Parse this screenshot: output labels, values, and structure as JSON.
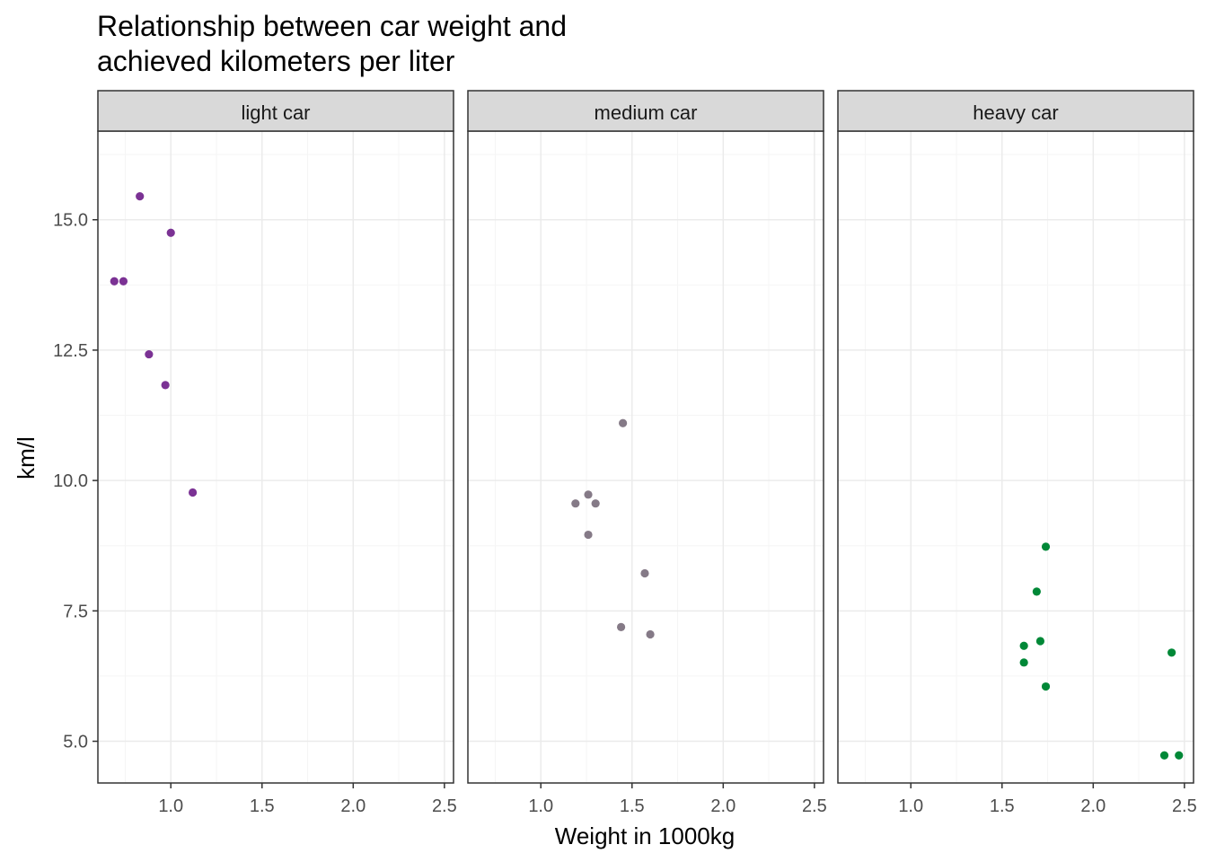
{
  "chart_data": {
    "type": "scatter",
    "title_lines": [
      "Relationship between car weight and",
      "achieved kilometers per liter"
    ],
    "xlabel": "Weight in 1000kg",
    "ylabel": "km/l",
    "xlim": [
      0.6,
      2.55
    ],
    "ylim": [
      4.2,
      16.7
    ],
    "x_ticks": [
      1.0,
      1.5,
      2.0,
      2.5
    ],
    "x_tick_labels": [
      "1.0",
      "1.5",
      "2.0",
      "2.5"
    ],
    "y_ticks": [
      5.0,
      7.5,
      10.0,
      12.5,
      15.0
    ],
    "y_tick_labels": [
      "5.0",
      "7.5",
      "10.0",
      "12.5",
      "15.0"
    ],
    "grid": true,
    "colors": {
      "light": "#7b3294",
      "medium": "#857a87",
      "heavy": "#008837",
      "strip_fill": "#d9d9d9",
      "grid_major": "#ebebeb",
      "grid_minor": "#f5f5f5"
    },
    "panels": [
      {
        "name": "light car",
        "color_key": "light",
        "points": [
          {
            "x": 0.83,
            "y": 15.45
          },
          {
            "x": 1.0,
            "y": 14.75
          },
          {
            "x": 0.69,
            "y": 13.82
          },
          {
            "x": 0.74,
            "y": 13.82
          },
          {
            "x": 0.88,
            "y": 12.42
          },
          {
            "x": 0.97,
            "y": 11.83
          },
          {
            "x": 1.12,
            "y": 9.77
          }
        ]
      },
      {
        "name": "medium car",
        "color_key": "medium",
        "points": [
          {
            "x": 1.45,
            "y": 11.1
          },
          {
            "x": 1.26,
            "y": 9.73
          },
          {
            "x": 1.19,
            "y": 9.56
          },
          {
            "x": 1.3,
            "y": 9.56
          },
          {
            "x": 1.26,
            "y": 8.96
          },
          {
            "x": 1.57,
            "y": 8.22
          },
          {
            "x": 1.44,
            "y": 7.19
          },
          {
            "x": 1.6,
            "y": 7.05
          }
        ]
      },
      {
        "name": "heavy car",
        "color_key": "heavy",
        "points": [
          {
            "x": 1.74,
            "y": 8.73
          },
          {
            "x": 1.69,
            "y": 7.87
          },
          {
            "x": 1.71,
            "y": 6.92
          },
          {
            "x": 1.62,
            "y": 6.83
          },
          {
            "x": 1.62,
            "y": 6.51
          },
          {
            "x": 1.74,
            "y": 6.05
          },
          {
            "x": 2.43,
            "y": 6.7
          },
          {
            "x": 2.39,
            "y": 4.73
          },
          {
            "x": 2.47,
            "y": 4.73
          }
        ]
      }
    ]
  }
}
